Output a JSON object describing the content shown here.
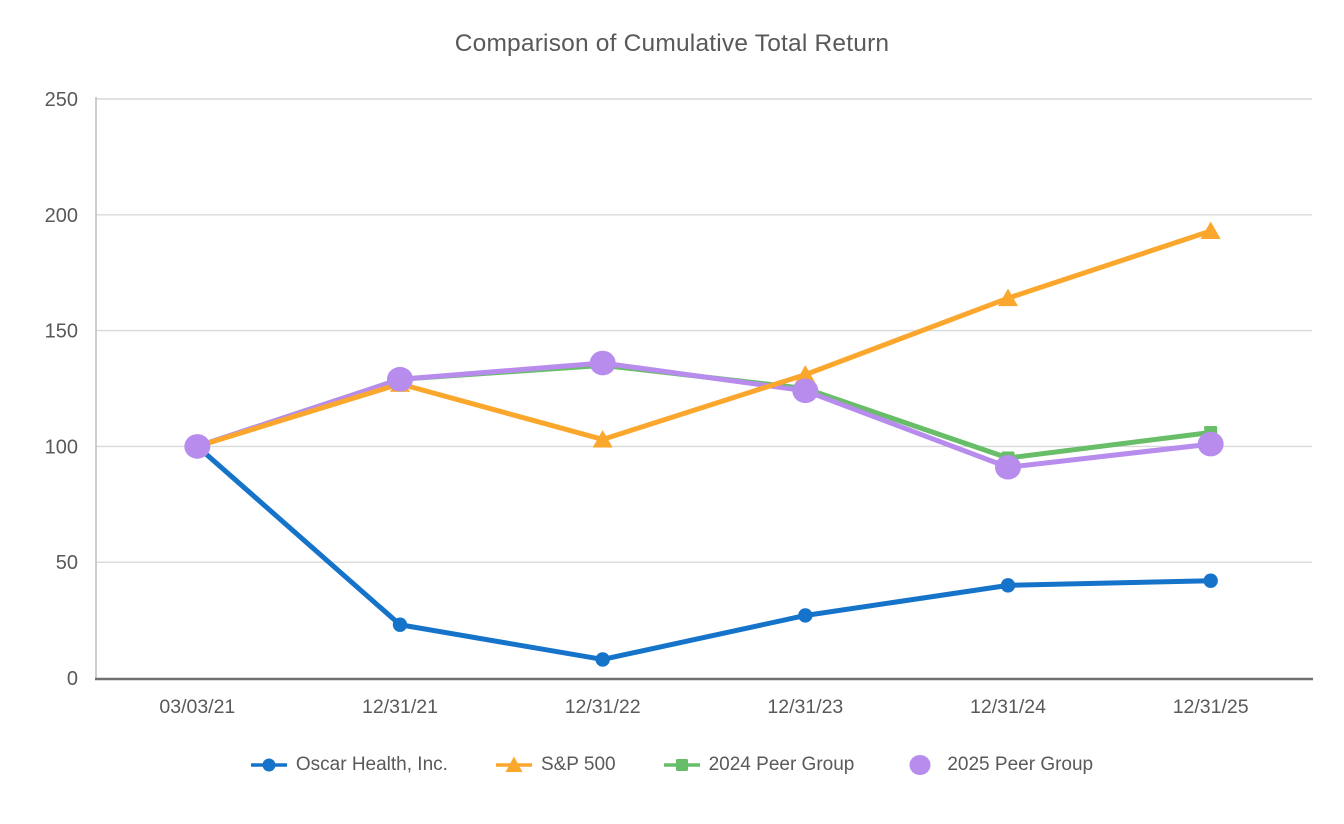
{
  "title": "Comparison of Cumulative Total Return",
  "chart_data": {
    "type": "line",
    "title": "Comparison of Cumulative Total Return",
    "categories": [
      "03/03/21",
      "12/31/21",
      "12/31/22",
      "12/31/23",
      "12/31/24",
      "12/31/25"
    ],
    "series": [
      {
        "name": "Oscar Health, Inc.",
        "color": "#1573C9",
        "marker": "circle",
        "values": [
          100,
          23,
          8,
          27,
          40,
          42
        ]
      },
      {
        "name": "S&P 500",
        "color": "#FBA72D",
        "marker": "triangle",
        "values": [
          100,
          127,
          103,
          131,
          164,
          193
        ]
      },
      {
        "name": "2024 Peer Group",
        "color": "#67BD68",
        "marker": "square",
        "values": [
          100,
          129,
          135,
          125,
          95,
          106
        ]
      },
      {
        "name": "2025 Peer Group",
        "color": "#B78CEC",
        "marker": "circle-large",
        "values": [
          100,
          129,
          136,
          124,
          91,
          101
        ]
      }
    ],
    "xlabel": "",
    "ylabel": "",
    "y_axis": {
      "ticks": [
        0,
        50,
        100,
        150,
        200,
        250
      ],
      "min": 0,
      "max": 250
    },
    "grid": true,
    "legend_position": "bottom",
    "colors": {
      "grid": "#D9D9D9",
      "y_axis_line": "#C1C1C1",
      "x_axis_line": "#707070",
      "tick_text": "#595959",
      "legend_text": "#595959",
      "title_text": "#595959"
    }
  }
}
